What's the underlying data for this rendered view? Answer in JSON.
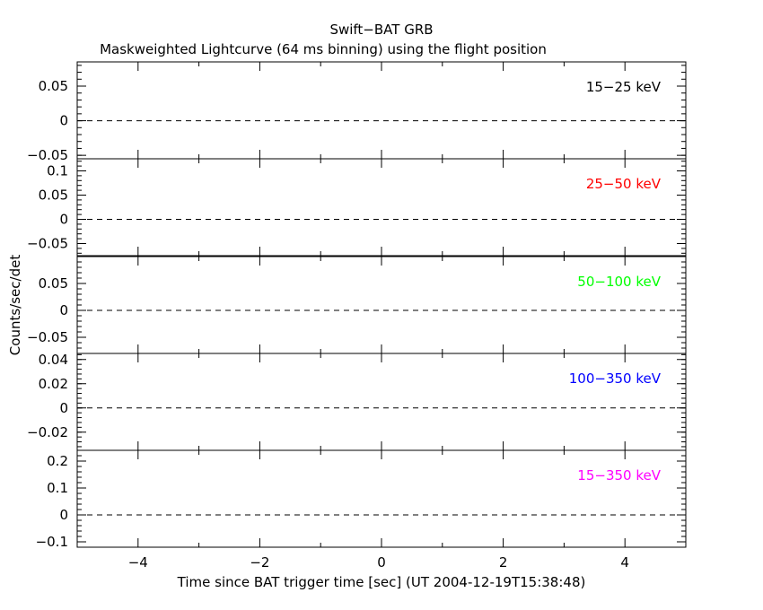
{
  "chart_data": {
    "type": "line",
    "title": "Swift−BAT GRB",
    "subtitle": "Maskweighted Lightcurve (64 ms binning) using the flight position",
    "xlabel": "Time since BAT trigger time [sec] (UT 2004-12-19T15:38:48)",
    "ylabel": "Counts/sec/det",
    "xlim": [
      -5,
      5
    ],
    "x_ticks": [
      -4,
      -2,
      0,
      2,
      4
    ],
    "x_tick_labels": [
      "−4",
      "−2",
      "0",
      "2",
      "4"
    ],
    "grid": false,
    "panels": [
      {
        "band": "15−25 keV",
        "color": "#000000",
        "ylim": [
          -0.055,
          0.085
        ],
        "y_ticks": [
          -0.05,
          0,
          0.05
        ],
        "y_tick_labels": [
          "−0.05",
          "0",
          "0.05"
        ],
        "zero_line": 0
      },
      {
        "band": "25−50 keV",
        "color": "#ff0000",
        "ylim": [
          -0.075,
          0.125
        ],
        "y_ticks": [
          -0.05,
          0,
          0.05,
          0.1
        ],
        "y_tick_labels": [
          "−0.05",
          "0",
          "0.05",
          "0.1"
        ],
        "zero_line": 0
      },
      {
        "band": "50−100 keV",
        "color": "#00ff00",
        "ylim": [
          -0.08,
          0.1
        ],
        "y_ticks": [
          -0.05,
          0,
          0.05
        ],
        "y_tick_labels": [
          "−0.05",
          "0",
          "0.05"
        ],
        "zero_line": 0
      },
      {
        "band": "100−350 keV",
        "color": "#0000ff",
        "ylim": [
          -0.035,
          0.045
        ],
        "y_ticks": [
          -0.02,
          0,
          0.02,
          0.04
        ],
        "y_tick_labels": [
          "−0.02",
          "0",
          "0.02",
          "0.04"
        ],
        "zero_line": 0
      },
      {
        "band": "15−350 keV",
        "color": "#ff00ff",
        "ylim": [
          -0.12,
          0.24
        ],
        "y_ticks": [
          -0.1,
          0,
          0.1,
          0.2
        ],
        "y_tick_labels": [
          "−0.1",
          "0",
          "0.1",
          "0.2"
        ],
        "zero_line": 0
      }
    ]
  }
}
